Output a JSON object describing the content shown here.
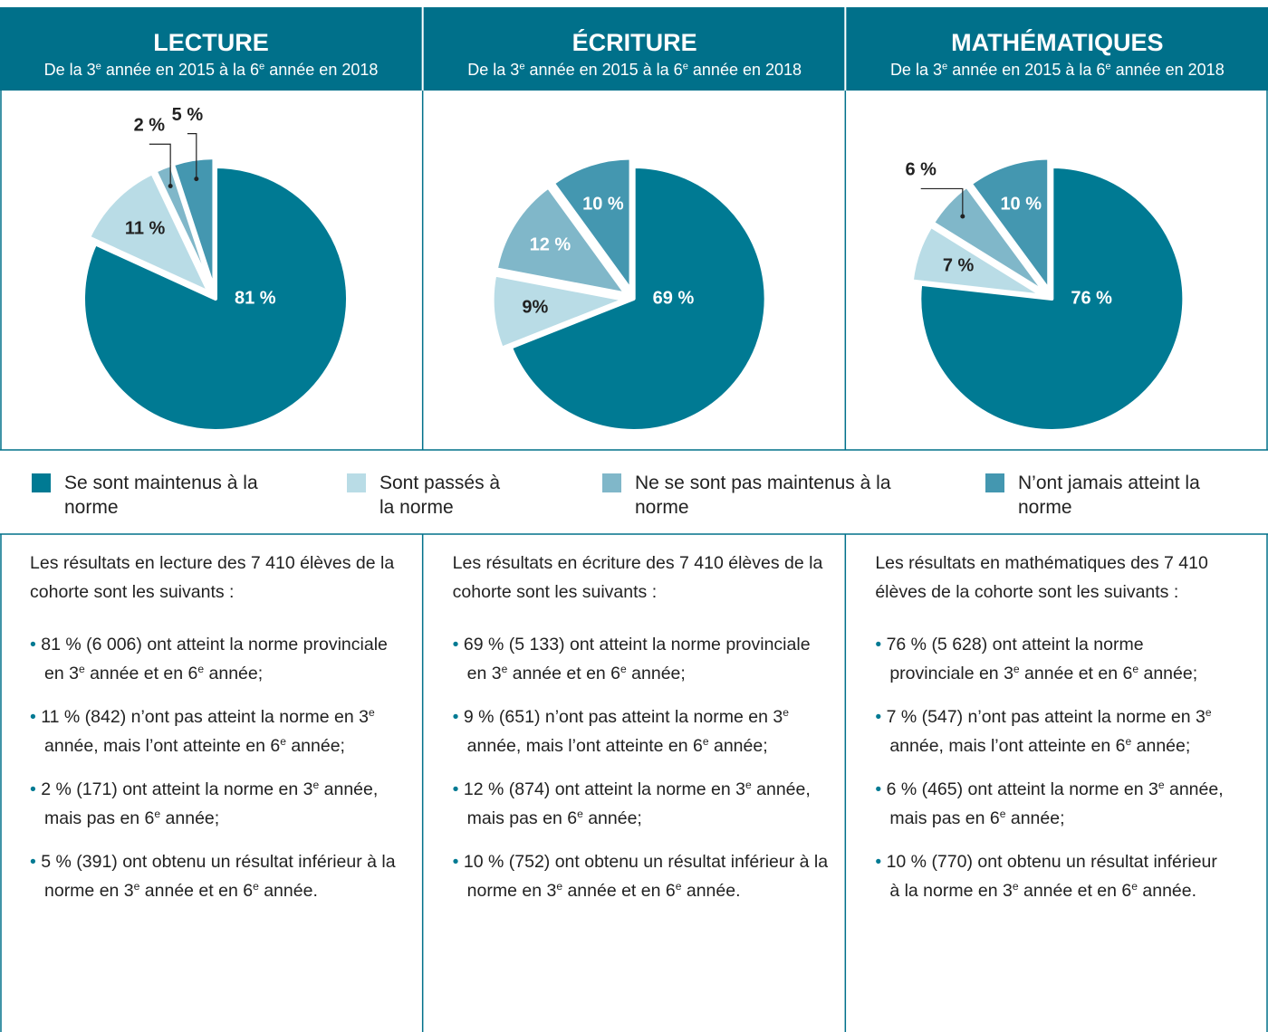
{
  "chart_data": [
    {
      "type": "pie",
      "title": "LECTURE",
      "subtitle": [
        "De la 3",
        "e",
        " année en 2015 à la 6",
        "e",
        " année en 2018"
      ],
      "categories": [
        "Se sont maintenus à la norme",
        "Sont passés à la norme",
        "Ne se sont pas maintenus à la norme",
        "N’ont jamais atteint la norme"
      ],
      "values": [
        81,
        11,
        2,
        5
      ],
      "value_labels": [
        "81 %",
        "11 %",
        "2 %",
        "5 %"
      ],
      "colors": [
        "#007a93",
        "#b9dce6",
        "#80b7c9",
        "#4497b0"
      ]
    },
    {
      "type": "pie",
      "title": "ÉCRITURE",
      "subtitle": [
        "De la 3",
        "e",
        " année en 2015 à la 6",
        "e",
        " année en 2018"
      ],
      "categories": [
        "Se sont maintenus à la norme",
        "Sont passés à la norme",
        "Ne se sont pas maintenus à la norme",
        "N’ont jamais atteint la norme"
      ],
      "values": [
        69,
        9,
        12,
        10
      ],
      "value_labels": [
        "69 %",
        "9%",
        "12 %",
        "10 %"
      ],
      "colors": [
        "#007a93",
        "#b9dce6",
        "#80b7c9",
        "#4497b0"
      ]
    },
    {
      "type": "pie",
      "title": "MATHÉMATIQUES",
      "subtitle": [
        "De la 3",
        "e",
        " année en 2015 à la 6",
        "e",
        " année en 2018"
      ],
      "categories": [
        "Se sont maintenus à la norme",
        "Sont passés à la norme",
        "Ne se sont pas maintenus à la norme",
        "N’ont jamais atteint la norme"
      ],
      "values": [
        76,
        7,
        6,
        10
      ],
      "value_labels": [
        "76 %",
        "7 %",
        "6 %",
        "10 %"
      ],
      "colors": [
        "#007a93",
        "#b9dce6",
        "#80b7c9",
        "#4497b0"
      ]
    }
  ],
  "summaries": [
    {
      "intro": "Les résultats en lecture des 7 410 élèves de la cohorte sont les suivants :",
      "bullets": [
        [
          "81 % (6 006) ont atteint la norme provinciale en 3",
          "e",
          " année et en 6",
          "e",
          " année;"
        ],
        [
          "11 % (842) n’ont pas atteint la norme en 3",
          "e",
          " année, mais l’ont atteinte en 6",
          "e",
          " année;"
        ],
        [
          "2 % (171) ont atteint la norme en 3",
          "e",
          " année, mais pas en 6",
          "e",
          " année;"
        ],
        [
          "5 % (391) ont obtenu un résultat inférieur à la norme en 3",
          "e",
          " année et en 6",
          "e",
          " année."
        ]
      ]
    },
    {
      "intro": "Les résultats en écriture des 7 410 élèves de la cohorte sont les suivants :",
      "bullets": [
        [
          "69 % (5 133) ont atteint la norme provinciale en 3",
          "e",
          " année et en 6",
          "e",
          " année;"
        ],
        [
          "9 % (651) n’ont pas atteint la norme en 3",
          "e",
          " année, mais l’ont atteinte en 6",
          "e",
          " année;"
        ],
        [
          "12 % (874) ont atteint la norme en 3",
          "e",
          " année, mais pas en 6",
          "e",
          " année;"
        ],
        [
          "10 % (752) ont obtenu un résultat inférieur à la norme en 3",
          "e",
          " année et en 6",
          "e",
          " année."
        ]
      ]
    },
    {
      "intro": "Les résultats en mathématiques des 7 410 élèves de la cohorte sont les suivants :",
      "bullets": [
        [
          "76 % (5 628) ont atteint la norme provinciale en 3",
          "e",
          " année et en 6",
          "e",
          " année;"
        ],
        [
          "7 % (547) n’ont pas atteint la norme en 3",
          "e",
          " année, mais l’ont atteinte en 6",
          "e",
          " année;"
        ],
        [
          "6 % (465) ont atteint la norme en 3",
          "e",
          " année, mais pas en 6",
          "e",
          " année;"
        ],
        [
          "10 % (770) ont obtenu un résultat inférieur à la norme en 3",
          "e",
          " année et en 6",
          "e",
          " année."
        ]
      ]
    }
  ]
}
